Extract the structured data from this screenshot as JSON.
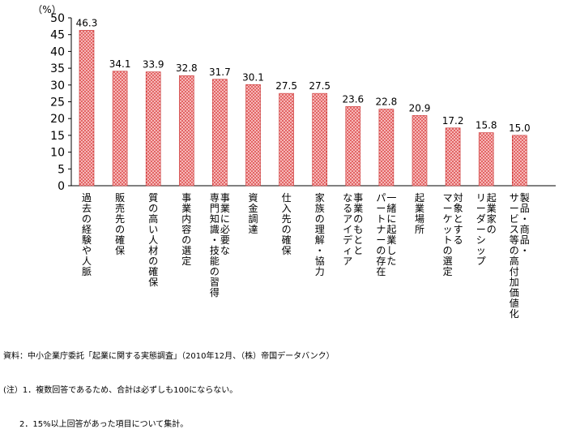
{
  "chart_data": {
    "type": "bar",
    "unit_label": "（%）",
    "ylim": [
      0,
      50
    ],
    "yticks": [
      0,
      5,
      10,
      15,
      20,
      25,
      30,
      35,
      40,
      45,
      50
    ],
    "grid": false,
    "bar_fill": "#f4a8a8",
    "bar_dots": "#d42a2a",
    "categories": [
      "過去の経験や人脈",
      "販売先の確保",
      "質の高い人材の確保",
      "事業内容の選定",
      "事業に必要な専門知識・技能の習得",
      "資金調達",
      "仕入先の確保",
      "家族の理解・協力",
      "事業のもととなるアイディア",
      "一緒に起業したパートナーの存在",
      "起業場所",
      "対象とするマーケットの選定",
      "起業家のリーダーシップ",
      "製品・商品・サービス等の高付加価値化"
    ],
    "category_lines": [
      [
        "過去の経験や人脈"
      ],
      [
        "販売先の確保"
      ],
      [
        "質の高い人材の確保"
      ],
      [
        "事業内容の選定"
      ],
      [
        "事業に必要な",
        "専門知識・技能の習得"
      ],
      [
        "資金調達"
      ],
      [
        "仕入先の確保"
      ],
      [
        "家族の理解・協力"
      ],
      [
        "事業のもとと",
        "なるアイディア"
      ],
      [
        "一緒に起業した",
        "パートナーの存在"
      ],
      [
        "起業場所"
      ],
      [
        "対象とする",
        "マーケットの選定"
      ],
      [
        "起業家の",
        "リーダーシップ"
      ],
      [
        "製品・商品・",
        "サービス等の高付加価値化"
      ]
    ],
    "values": [
      46.3,
      34.1,
      33.9,
      32.8,
      31.7,
      30.1,
      27.5,
      27.5,
      23.6,
      22.8,
      20.9,
      17.2,
      15.8,
      15.0
    ],
    "value_labels": [
      "46.3",
      "34.1",
      "33.9",
      "32.8",
      "31.7",
      "30.1",
      "27.5",
      "27.5",
      "23.6",
      "22.8",
      "20.9",
      "17.2",
      "15.8",
      "15.0"
    ]
  },
  "notes": {
    "source": "資料：中小企業庁委託「起業に関する実態調査」（2010年12月、（株）帝国データバンク）",
    "note1": "(注）1．複数回答であるため、合計は必ずしも100にならない。",
    "note2": "　　2．15%以上回答があった項目について集計。"
  }
}
